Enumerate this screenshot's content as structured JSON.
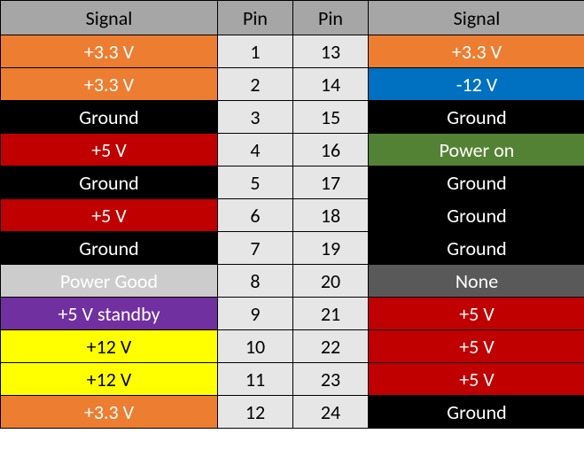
{
  "colors": {
    "header_bg": "#a6a6a6",
    "header_fg": "#000000",
    "pin_bg": "#e6e6e6",
    "pin_fg": "#000000",
    "orange_bg": "#ed7d31",
    "orange_fg": "#ffffff",
    "black_bg": "#000000",
    "black_fg": "#ffffff",
    "red_bg": "#c00000",
    "red_fg": "#ffffff",
    "lightgray_bg": "#cccccc",
    "lightgray_fg": "#ffffff",
    "purple_bg": "#7030a0",
    "purple_fg": "#ffffff",
    "yellow_bg": "#ffff00",
    "yellow_fg": "#000000",
    "blue_bg": "#0070c0",
    "blue_fg": "#ffffff",
    "green_bg": "#548235",
    "green_fg": "#ffffff",
    "darkgray_bg": "#595959",
    "darkgray_fg": "#ffffff"
  },
  "header": {
    "signal_left": "Signal",
    "pin_left": "Pin",
    "pin_right": "Pin",
    "signal_right": "Signal"
  },
  "rows": [
    {
      "left_signal": "+3.3 V",
      "left_color": "orange",
      "left_pin": "1",
      "right_pin": "13",
      "right_signal": "+3.3 V",
      "right_color": "orange"
    },
    {
      "left_signal": "+3.3 V",
      "left_color": "orange",
      "left_pin": "2",
      "right_pin": "14",
      "right_signal": "-12 V",
      "right_color": "blue"
    },
    {
      "left_signal": "Ground",
      "left_color": "black",
      "left_pin": "3",
      "right_pin": "15",
      "right_signal": "Ground",
      "right_color": "black"
    },
    {
      "left_signal": "+5 V",
      "left_color": "red",
      "left_pin": "4",
      "right_pin": "16",
      "right_signal": "Power on",
      "right_color": "green"
    },
    {
      "left_signal": "Ground",
      "left_color": "black",
      "left_pin": "5",
      "right_pin": "17",
      "right_signal": "Ground",
      "right_color": "black"
    },
    {
      "left_signal": "+5 V",
      "left_color": "red",
      "left_pin": "6",
      "right_pin": "18",
      "right_signal": "Ground",
      "right_color": "black"
    },
    {
      "left_signal": "Ground",
      "left_color": "black",
      "left_pin": "7",
      "right_pin": "19",
      "right_signal": "Ground",
      "right_color": "black"
    },
    {
      "left_signal": "Power Good",
      "left_color": "lightgray",
      "left_pin": "8",
      "right_pin": "20",
      "right_signal": "None",
      "right_color": "darkgray"
    },
    {
      "left_signal": "+5 V standby",
      "left_color": "purple",
      "left_pin": "9",
      "right_pin": "21",
      "right_signal": "+5 V",
      "right_color": "red"
    },
    {
      "left_signal": "+12 V",
      "left_color": "yellow",
      "left_pin": "10",
      "right_pin": "22",
      "right_signal": "+5 V",
      "right_color": "red"
    },
    {
      "left_signal": "+12 V",
      "left_color": "yellow",
      "left_pin": "11",
      "right_pin": "23",
      "right_signal": "+5 V",
      "right_color": "red"
    },
    {
      "left_signal": "+3.3 V",
      "left_color": "orange",
      "left_pin": "12",
      "right_pin": "24",
      "right_signal": "Ground",
      "right_color": "black"
    }
  ]
}
